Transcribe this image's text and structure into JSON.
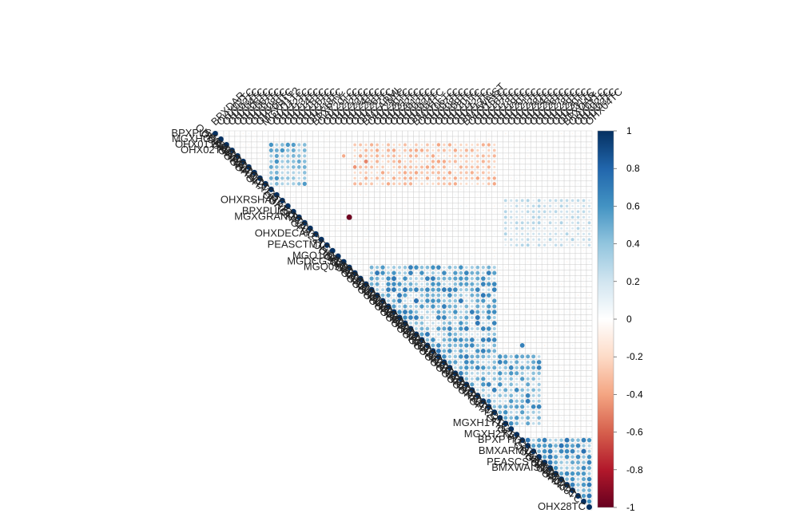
{
  "chart_data": {
    "type": "heatmap",
    "variant": "correlation-matrix-upper-triangle",
    "matrix_size": 68,
    "row_labels_readable": [
      {
        "row": 0,
        "text": "BPXPLS"
      },
      {
        "row": 1,
        "text": "MGXHGT"
      },
      {
        "row": 2,
        "text": "OHX01TC"
      },
      {
        "row": 3,
        "text": "OHX02TC"
      },
      {
        "row": 12,
        "text": "OHXRSHAP"
      },
      {
        "row": 14,
        "text": "BPXPULS"
      },
      {
        "row": 15,
        "text": "MGXGRAND"
      },
      {
        "row": 18,
        "text": "OHXDECAY"
      },
      {
        "row": 20,
        "text": "PEASCTM1"
      },
      {
        "row": 22,
        "text": "MGQ100"
      },
      {
        "row": 23,
        "text": "MGDCGSZ"
      },
      {
        "row": 24,
        "text": "MGQ090"
      },
      {
        "row": 52,
        "text": "MGXH1T1"
      },
      {
        "row": 54,
        "text": "MGXH2T2"
      },
      {
        "row": 55,
        "text": "BPXPTY"
      },
      {
        "row": 57,
        "text": "BMXARML"
      },
      {
        "row": 59,
        "text": "PEASCST1"
      },
      {
        "row": 60,
        "text": "BMXWAIST"
      },
      {
        "row": 67,
        "text": "OHX28TC"
      }
    ],
    "column_labels_readable": [
      "BPXDAR",
      "MGXH1T2",
      "BPXPTY",
      "BMXARML",
      "BMXHT",
      "BMXWAIST",
      "OHX28TC"
    ],
    "strong_cells": [
      {
        "row": 15,
        "col": 24,
        "value": -0.98
      },
      {
        "row": 4,
        "col": 23,
        "value": -0.38
      },
      {
        "row": 5,
        "col": 27,
        "value": -0.5
      },
      {
        "row": 6,
        "col": 25,
        "value": -0.45
      },
      {
        "row": 28,
        "col": 34,
        "value": 0.72
      },
      {
        "row": 30,
        "col": 36,
        "value": 0.75
      },
      {
        "row": 35,
        "col": 45,
        "value": 0.7
      },
      {
        "row": 38,
        "col": 55,
        "value": 0.68
      }
    ],
    "diagonal_value": 1,
    "colorbar": {
      "range": [
        -1,
        1
      ],
      "ticks": [
        "1",
        "0.8",
        "0.6",
        "0.4",
        "0.2",
        "0",
        "-0.2",
        "-0.4",
        "-0.6",
        "-0.8",
        "-1"
      ],
      "colors": [
        "#67001f",
        "#b2182b",
        "#d6604d",
        "#f4a582",
        "#fddbc7",
        "#ffffff",
        "#d1e5f0",
        "#92c5de",
        "#4393c3",
        "#2166ac",
        "#053061"
      ]
    },
    "grid": true,
    "legend_position": "right"
  }
}
